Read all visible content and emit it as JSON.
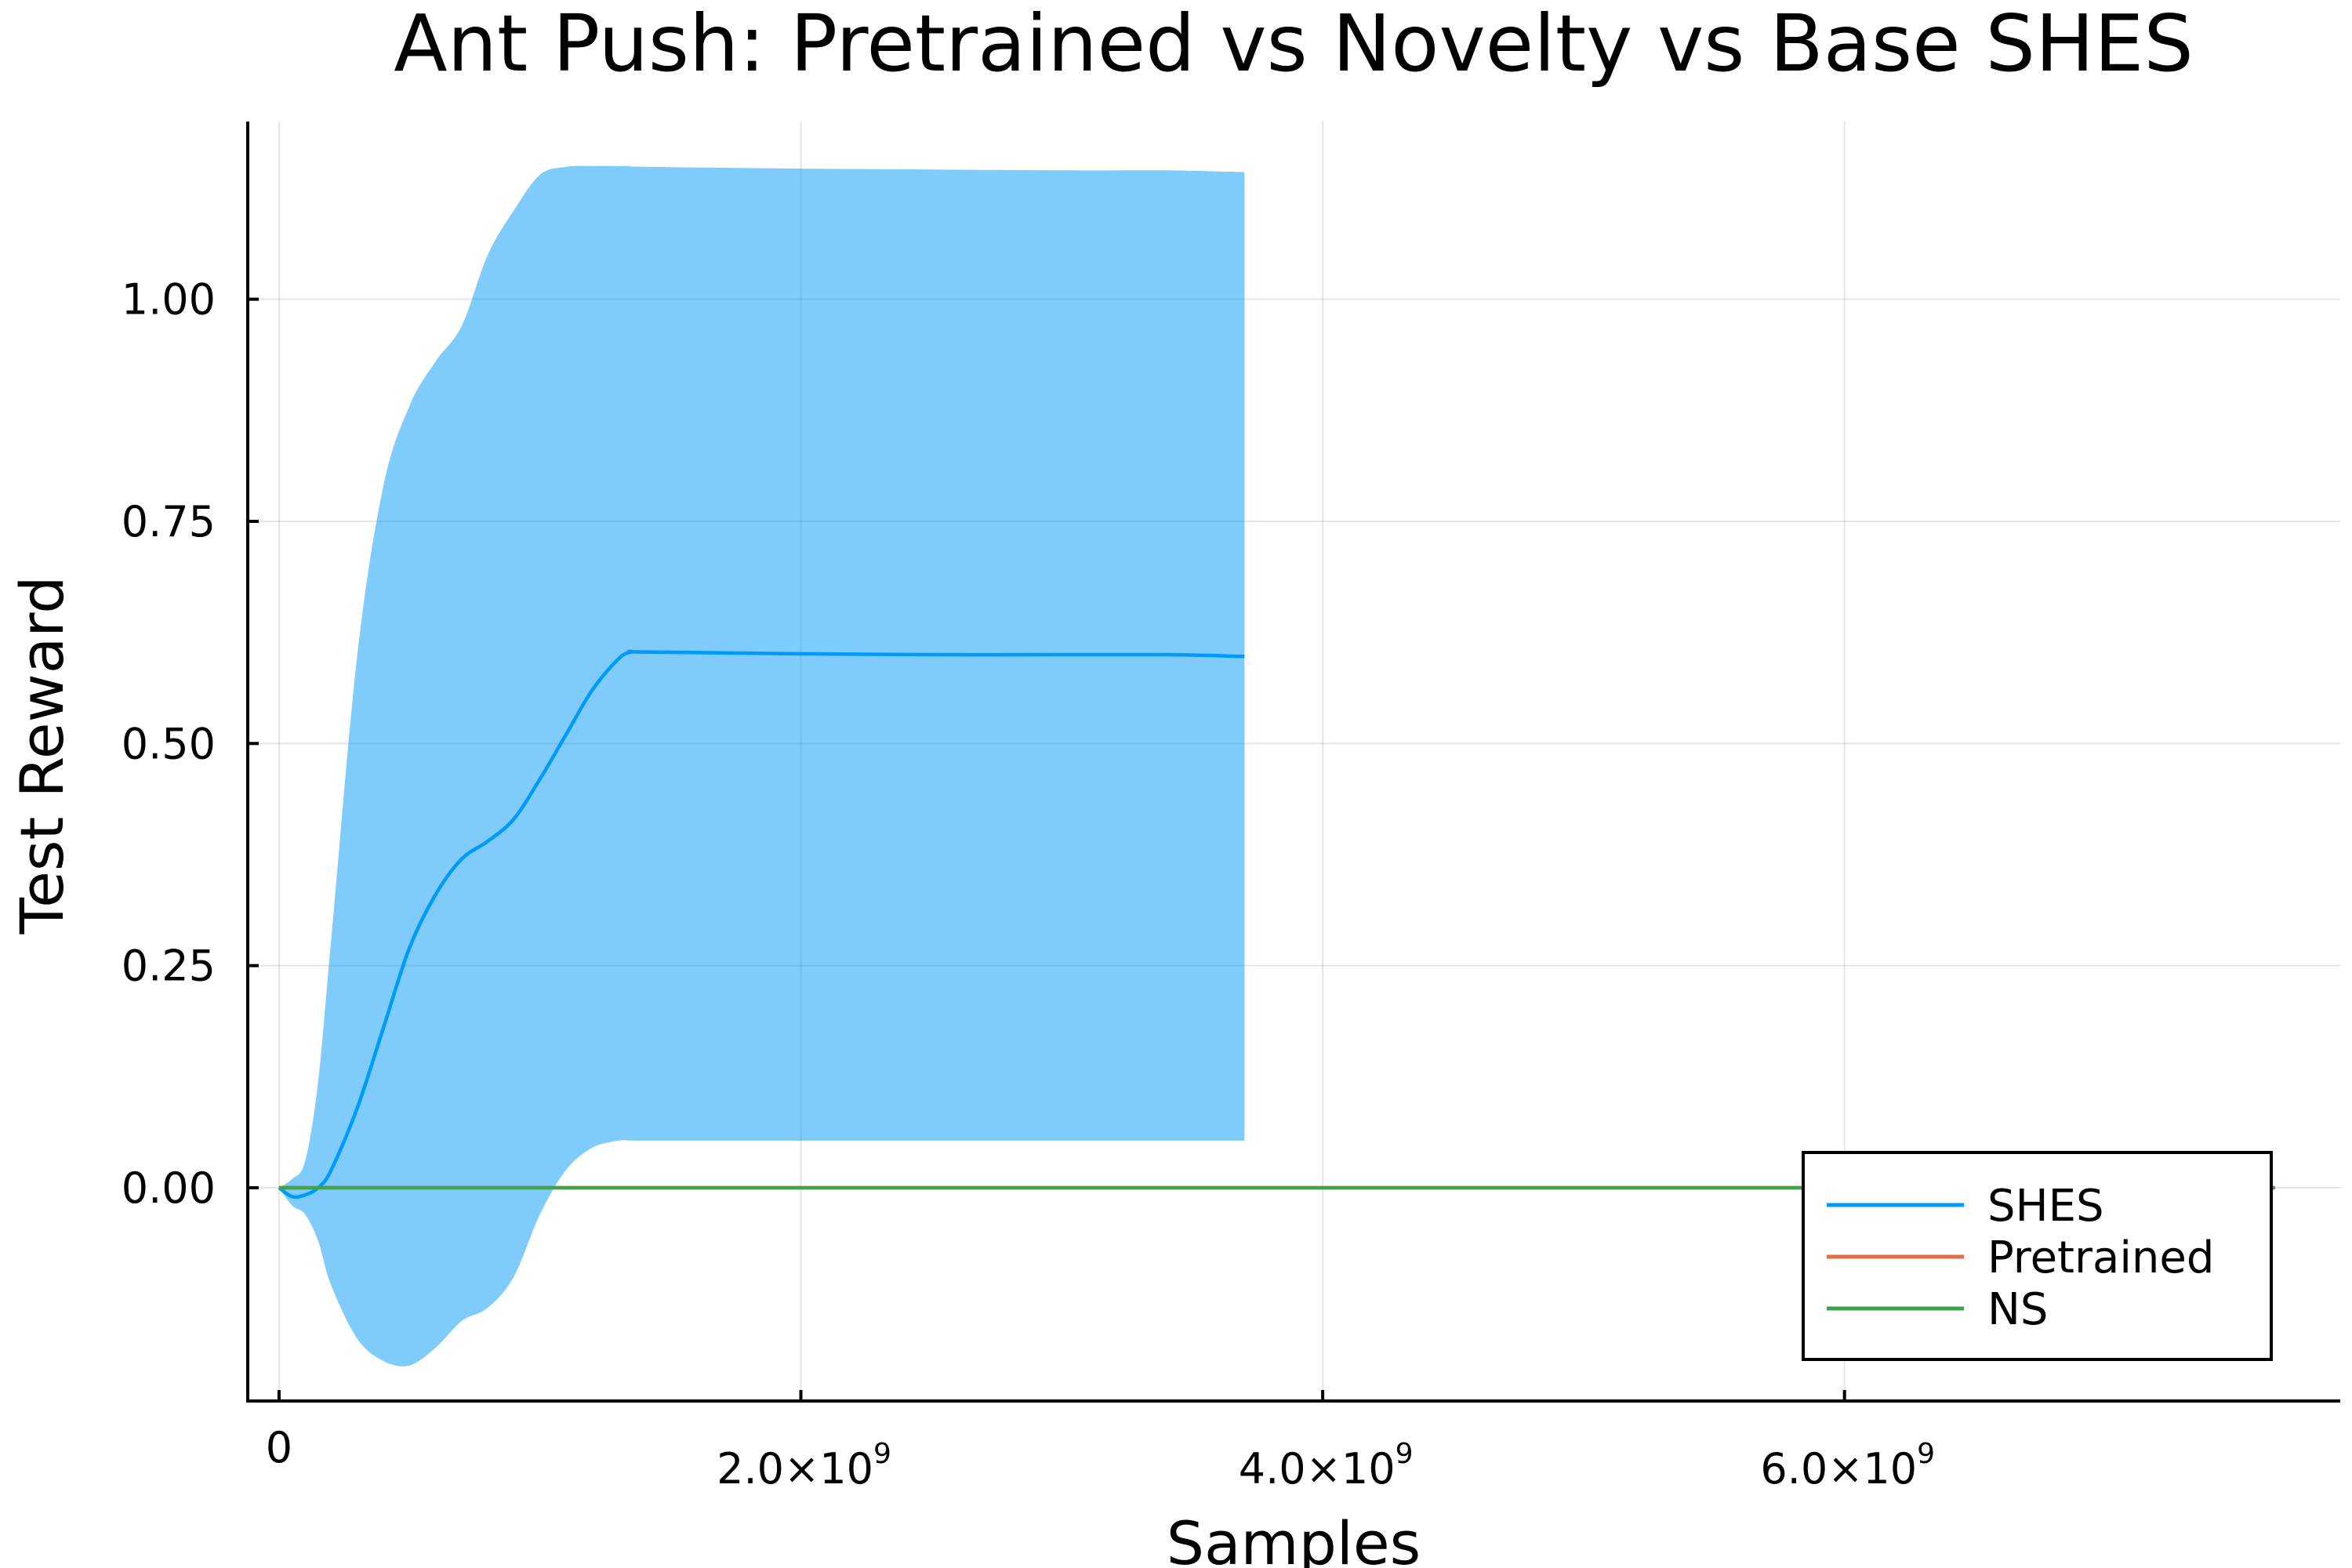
{
  "chart_data": {
    "type": "line",
    "title": "Ant Push: Pretrained vs Novelty vs Base SHES",
    "xlabel": "Samples",
    "ylabel": "Test Reward",
    "xlim": [
      -120000000,
      7900000000
    ],
    "ylim": [
      -0.24,
      1.2
    ],
    "grid": true,
    "legend_position": "bottom-right",
    "x_ticks": [
      {
        "value": 0,
        "mantissa": "0",
        "exponent": ""
      },
      {
        "value": 2000000000,
        "mantissa": "2.0×10",
        "exponent": "9"
      },
      {
        "value": 4000000000,
        "mantissa": "4.0×10",
        "exponent": "9"
      },
      {
        "value": 6000000000,
        "mantissa": "6.0×10",
        "exponent": "9"
      }
    ],
    "y_ticks": [
      {
        "value": 0.0,
        "label": "0.00"
      },
      {
        "value": 0.25,
        "label": "0.25"
      },
      {
        "value": 0.5,
        "label": "0.50"
      },
      {
        "value": 0.75,
        "label": "0.75"
      },
      {
        "value": 1.0,
        "label": "1.00"
      }
    ],
    "series": [
      {
        "name": "SHES",
        "color": "#009af9",
        "band_color": "#009af9",
        "band_opacity": 0.5,
        "x": [
          0,
          50000000,
          100000000,
          150000000,
          200000000,
          300000000,
          400000000,
          500000000,
          600000000,
          700000000,
          800000000,
          900000000,
          1000000000,
          1100000000,
          1200000000,
          1300000000,
          1350000000,
          1400000000,
          2000000000,
          2500000000,
          3000000000,
          3400000000,
          3700000000
        ],
        "y": [
          0.0,
          -0.01,
          -0.008,
          0.0,
          0.02,
          0.09,
          0.18,
          0.27,
          0.33,
          0.37,
          0.39,
          0.415,
          0.46,
          0.51,
          0.56,
          0.595,
          0.603,
          0.603,
          0.601,
          0.6,
          0.6,
          0.6,
          0.598
        ],
        "lower": [
          0.0,
          -0.02,
          -0.03,
          -0.06,
          -0.11,
          -0.17,
          -0.195,
          -0.2,
          -0.18,
          -0.15,
          -0.135,
          -0.1,
          -0.03,
          0.02,
          0.045,
          0.053,
          0.053,
          0.053,
          0.053,
          0.053,
          0.053,
          0.053,
          0.053
        ],
        "upper": [
          0.0,
          0.01,
          0.03,
          0.12,
          0.28,
          0.6,
          0.79,
          0.88,
          0.93,
          0.97,
          1.05,
          1.1,
          1.14,
          1.149,
          1.15,
          1.15,
          1.15,
          1.149,
          1.147,
          1.146,
          1.145,
          1.145,
          1.143
        ]
      },
      {
        "name": "Pretrained",
        "color": "#e26f46",
        "x": [
          0,
          7650000000
        ],
        "y": [
          0.0,
          0.0
        ]
      },
      {
        "name": "NS",
        "color": "#3da44d",
        "x": [
          0,
          7650000000
        ],
        "y": [
          0.0,
          0.0
        ]
      }
    ]
  }
}
